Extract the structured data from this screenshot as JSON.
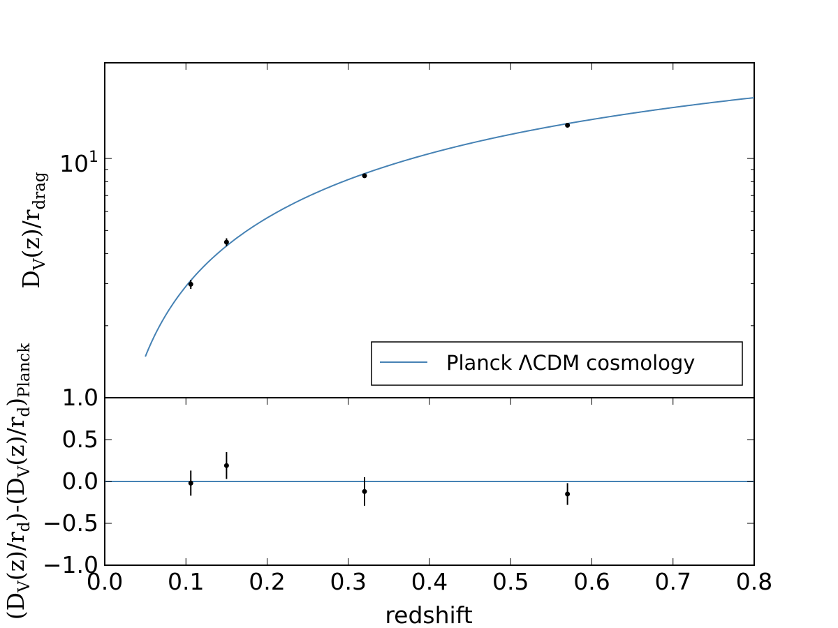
{
  "chart_data": [
    {
      "type": "scatter",
      "panel": "top",
      "yscale": "log",
      "xlim": [
        0.0,
        0.8
      ],
      "ylim_decades": [
        0,
        1.4
      ],
      "ylabel": {
        "main": "D",
        "sub1": "V",
        "mid": "(z)/r",
        "sub2": "drag"
      },
      "yticks": [
        {
          "value": 1.0,
          "label": "1.0"
        },
        {
          "value": 10,
          "label_base": "10",
          "label_exp": "1"
        }
      ],
      "legend": {
        "position": "lower-right",
        "label": "Planck ΛCDM cosmology",
        "color": "#4682b4"
      },
      "model_color": "#4682b4",
      "points": [
        {
          "x": 0.106,
          "y": 2.98,
          "yerr": 0.13
        },
        {
          "x": 0.15,
          "y": 4.47,
          "yerr": 0.17
        },
        {
          "x": 0.32,
          "y": 8.47,
          "yerr": 0.17
        },
        {
          "x": 0.57,
          "y": 13.77,
          "yerr": 0.13
        }
      ]
    },
    {
      "type": "scatter",
      "panel": "bottom",
      "xlim": [
        0.0,
        0.8
      ],
      "ylim": [
        -1.0,
        1.0
      ],
      "xlabel": "redshift",
      "xticks": [
        "0.0",
        "0.1",
        "0.2",
        "0.3",
        "0.4",
        "0.5",
        "0.6",
        "0.7",
        "0.8"
      ],
      "yticks": [
        "−1.0",
        "−0.5",
        "0.0",
        "0.5"
      ],
      "ylabel": {
        "p1": "(D",
        "s1": "V",
        "p2": "(z)/r",
        "s2": "d",
        "p3": ")-(D",
        "s3": "V",
        "p4": "(z)/r",
        "s4": "d",
        "p5": ")",
        "s5": "Planck"
      },
      "zero_line_color": "#4682b4",
      "points": [
        {
          "x": 0.106,
          "y": -0.02,
          "yerr": 0.15
        },
        {
          "x": 0.15,
          "y": 0.19,
          "yerr": 0.16
        },
        {
          "x": 0.32,
          "y": -0.12,
          "yerr": 0.17
        },
        {
          "x": 0.57,
          "y": -0.15,
          "yerr": 0.13
        }
      ]
    }
  ]
}
